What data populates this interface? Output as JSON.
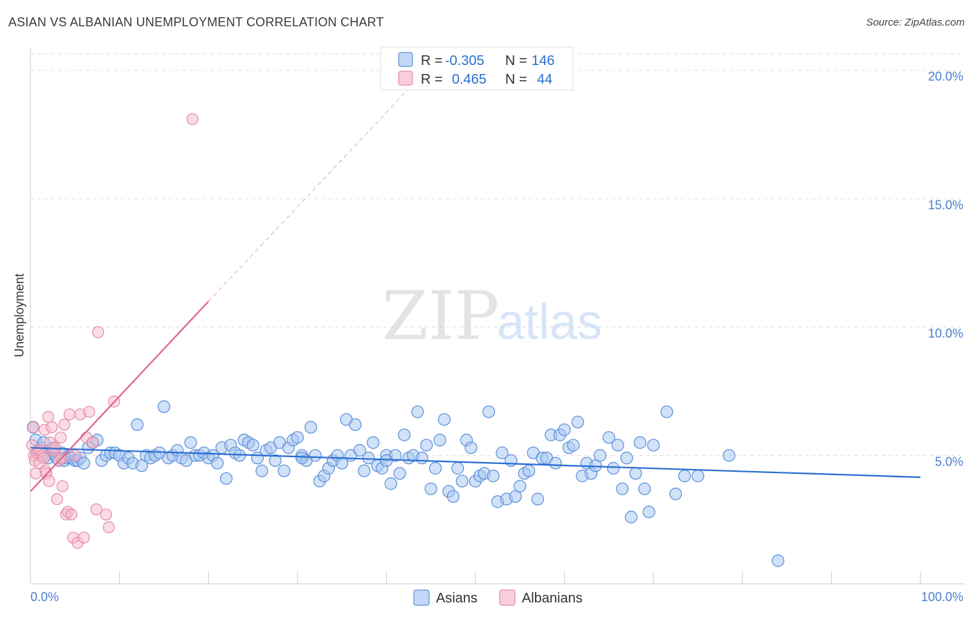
{
  "header": {
    "title": "ASIAN VS ALBANIAN UNEMPLOYMENT CORRELATION CHART",
    "source": "Source: ZipAtlas.com"
  },
  "watermark": {
    "part1": "ZIP",
    "part2": "atlas"
  },
  "colors": {
    "asian_fill": "#a9c8f2",
    "asian_stroke": "#5b8fd8",
    "asian_line": "#2a6fd0",
    "albanian_fill": "#f7b9cc",
    "albanian_stroke": "#e58aa6",
    "albanian_line": "#e0638c",
    "tick_text": "#4a7fd0",
    "grid": "#dddddd"
  },
  "legend_stats": [
    {
      "r_label": "R =",
      "r_value": "-0.305",
      "n_label": "N =",
      "n_value": "146"
    },
    {
      "r_label": "R =",
      "r_value": "0.465",
      "n_label": "N =",
      "n_value": "44"
    }
  ],
  "chart_data": {
    "type": "scatter",
    "title": "ASIAN VS ALBANIAN UNEMPLOYMENT CORRELATION CHART",
    "xlabel": "",
    "ylabel": "Unemployment",
    "xlim": [
      0,
      100
    ],
    "ylim": [
      0,
      20.8
    ],
    "x_tick_labels": [
      "0.0%",
      "100.0%"
    ],
    "y_ticks": [
      5,
      10,
      15,
      20
    ],
    "y_tick_labels": [
      "5.0%",
      "10.0%",
      "15.0%",
      "20.0%"
    ],
    "grid": true,
    "legend_position": "bottom-center",
    "series": [
      {
        "name": "Asians",
        "r": -0.305,
        "n": 146,
        "trend": {
          "x0": 0,
          "y0": 5.3,
          "x1": 100,
          "y1": 4.15
        },
        "points": [
          [
            0.3,
            6.1
          ],
          [
            0.6,
            5.6
          ],
          [
            0.9,
            5.1
          ],
          [
            1.2,
            5.3
          ],
          [
            1.5,
            5.5
          ],
          [
            1.8,
            5.0
          ],
          [
            2.0,
            4.9
          ],
          [
            2.2,
            5.2
          ],
          [
            2.5,
            5.3
          ],
          [
            2.8,
            5.0
          ],
          [
            3.0,
            4.9
          ],
          [
            3.2,
            4.8
          ],
          [
            3.5,
            5.1
          ],
          [
            3.8,
            4.8
          ],
          [
            4.0,
            4.9
          ],
          [
            4.3,
            5.0
          ],
          [
            4.6,
            4.9
          ],
          [
            5.0,
            4.8
          ],
          [
            5.3,
            4.8
          ],
          [
            5.6,
            4.9
          ],
          [
            6.0,
            4.7
          ],
          [
            6.5,
            5.3
          ],
          [
            7.0,
            5.5
          ],
          [
            7.5,
            5.6
          ],
          [
            8.0,
            4.8
          ],
          [
            8.5,
            5.0
          ],
          [
            9.0,
            5.1
          ],
          [
            9.5,
            5.1
          ],
          [
            10.0,
            5.0
          ],
          [
            10.5,
            4.7
          ],
          [
            11.0,
            4.9
          ],
          [
            11.5,
            4.7
          ],
          [
            12.0,
            6.2
          ],
          [
            12.5,
            4.6
          ],
          [
            13.0,
            5.0
          ],
          [
            13.5,
            4.9
          ],
          [
            14.0,
            5.0
          ],
          [
            14.5,
            5.1
          ],
          [
            15.0,
            6.9
          ],
          [
            15.5,
            4.9
          ],
          [
            16.0,
            5.0
          ],
          [
            16.5,
            5.2
          ],
          [
            17.0,
            4.9
          ],
          [
            17.5,
            4.8
          ],
          [
            18.0,
            5.5
          ],
          [
            18.5,
            5.0
          ],
          [
            19.0,
            5.0
          ],
          [
            19.5,
            5.1
          ],
          [
            20.0,
            4.9
          ],
          [
            20.5,
            5.0
          ],
          [
            21.0,
            4.7
          ],
          [
            21.5,
            5.3
          ],
          [
            22.0,
            4.1
          ],
          [
            22.5,
            5.4
          ],
          [
            23.0,
            5.1
          ],
          [
            23.5,
            5.0
          ],
          [
            24.0,
            5.6
          ],
          [
            24.5,
            5.5
          ],
          [
            25.0,
            5.4
          ],
          [
            25.5,
            4.9
          ],
          [
            26.0,
            4.4
          ],
          [
            26.5,
            5.2
          ],
          [
            27.0,
            5.3
          ],
          [
            27.5,
            4.8
          ],
          [
            28.0,
            5.5
          ],
          [
            28.5,
            4.4
          ],
          [
            29.0,
            5.3
          ],
          [
            29.5,
            5.6
          ],
          [
            30.0,
            5.7
          ],
          [
            30.5,
            5.0
          ],
          [
            31.0,
            4.8
          ],
          [
            31.5,
            6.1
          ],
          [
            32.0,
            5.0
          ],
          [
            32.5,
            4.0
          ],
          [
            33.0,
            4.2
          ],
          [
            33.5,
            4.5
          ],
          [
            34.0,
            4.8
          ],
          [
            34.5,
            5.0
          ],
          [
            35.0,
            4.7
          ],
          [
            35.5,
            6.4
          ],
          [
            36.0,
            5.0
          ],
          [
            36.5,
            6.2
          ],
          [
            37.0,
            5.2
          ],
          [
            37.5,
            4.4
          ],
          [
            38.0,
            4.9
          ],
          [
            38.5,
            5.5
          ],
          [
            39.0,
            4.6
          ],
          [
            39.5,
            4.5
          ],
          [
            40.0,
            5.0
          ],
          [
            40.5,
            3.9
          ],
          [
            41.0,
            5.0
          ],
          [
            41.5,
            4.3
          ],
          [
            42.0,
            5.8
          ],
          [
            42.5,
            4.9
          ],
          [
            43.0,
            5.0
          ],
          [
            43.5,
            6.7
          ],
          [
            44.0,
            4.9
          ],
          [
            44.5,
            5.4
          ],
          [
            45.0,
            3.7
          ],
          [
            45.5,
            4.5
          ],
          [
            46.0,
            5.6
          ],
          [
            46.5,
            6.4
          ],
          [
            47.0,
            3.6
          ],
          [
            47.5,
            3.4
          ],
          [
            48.0,
            4.5
          ],
          [
            48.5,
            4.0
          ],
          [
            49.0,
            5.6
          ],
          [
            49.5,
            5.3
          ],
          [
            50.0,
            4.0
          ],
          [
            50.5,
            4.2
          ],
          [
            51.0,
            4.3
          ],
          [
            51.5,
            6.7
          ],
          [
            52.0,
            4.2
          ],
          [
            52.5,
            3.2
          ],
          [
            53.0,
            5.1
          ],
          [
            53.5,
            3.3
          ],
          [
            54.0,
            4.8
          ],
          [
            54.5,
            3.4
          ],
          [
            55.0,
            3.8
          ],
          [
            55.5,
            4.3
          ],
          [
            56.0,
            4.4
          ],
          [
            56.5,
            5.1
          ],
          [
            57.0,
            3.3
          ],
          [
            57.5,
            4.9
          ],
          [
            58.0,
            4.9
          ],
          [
            58.5,
            5.8
          ],
          [
            59.0,
            4.7
          ],
          [
            59.5,
            5.8
          ],
          [
            60.0,
            6.0
          ],
          [
            60.5,
            5.3
          ],
          [
            61.0,
            5.4
          ],
          [
            61.5,
            6.3
          ],
          [
            62.0,
            4.2
          ],
          [
            62.5,
            4.7
          ],
          [
            63.0,
            4.3
          ],
          [
            63.5,
            4.6
          ],
          [
            64.0,
            5.0
          ],
          [
            65.0,
            5.7
          ],
          [
            65.5,
            4.5
          ],
          [
            66.0,
            5.4
          ],
          [
            66.5,
            3.7
          ],
          [
            67.0,
            4.9
          ],
          [
            67.5,
            2.6
          ],
          [
            68.0,
            4.3
          ],
          [
            68.5,
            5.5
          ],
          [
            69.0,
            3.7
          ],
          [
            69.5,
            2.8
          ],
          [
            70.0,
            5.4
          ],
          [
            71.5,
            6.7
          ],
          [
            72.5,
            3.5
          ],
          [
            73.5,
            4.2
          ],
          [
            75.0,
            4.2
          ],
          [
            78.5,
            5.0
          ],
          [
            84.0,
            0.9
          ],
          [
            30.5,
            4.9
          ],
          [
            40.0,
            4.8
          ]
        ]
      },
      {
        "name": "Albanians",
        "r": 0.465,
        "n": 44,
        "trend": {
          "x0": 0,
          "y0": 3.6,
          "x1": 20,
          "y1": 11.0
        },
        "trend_extension": {
          "x0": 20,
          "y0": 11.0,
          "x1": 45,
          "y1": 20.2
        },
        "points": [
          [
            0.2,
            5.4
          ],
          [
            0.3,
            6.1
          ],
          [
            0.4,
            5.0
          ],
          [
            0.5,
            4.8
          ],
          [
            0.6,
            4.3
          ],
          [
            0.7,
            5.1
          ],
          [
            0.9,
            5.2
          ],
          [
            1.0,
            4.7
          ],
          [
            1.1,
            5.2
          ],
          [
            1.3,
            5.0
          ],
          [
            1.5,
            4.9
          ],
          [
            1.6,
            6.0
          ],
          [
            1.7,
            4.4
          ],
          [
            1.8,
            4.3
          ],
          [
            2.0,
            6.5
          ],
          [
            2.1,
            4.0
          ],
          [
            2.2,
            5.5
          ],
          [
            2.4,
            6.1
          ],
          [
            2.6,
            5.2
          ],
          [
            2.8,
            5.3
          ],
          [
            3.0,
            3.3
          ],
          [
            3.2,
            4.8
          ],
          [
            3.4,
            5.7
          ],
          [
            3.5,
            4.9
          ],
          [
            3.6,
            3.8
          ],
          [
            3.8,
            6.2
          ],
          [
            4.0,
            2.7
          ],
          [
            4.2,
            2.8
          ],
          [
            4.4,
            6.6
          ],
          [
            4.6,
            2.7
          ],
          [
            4.8,
            1.8
          ],
          [
            5.0,
            5.0
          ],
          [
            5.3,
            1.6
          ],
          [
            5.6,
            6.6
          ],
          [
            6.0,
            1.8
          ],
          [
            6.3,
            5.7
          ],
          [
            6.6,
            6.7
          ],
          [
            7.0,
            5.5
          ],
          [
            7.4,
            2.9
          ],
          [
            8.5,
            2.7
          ],
          [
            8.8,
            2.2
          ],
          [
            9.4,
            7.1
          ],
          [
            7.6,
            9.8
          ],
          [
            18.2,
            18.1
          ]
        ]
      }
    ]
  }
}
